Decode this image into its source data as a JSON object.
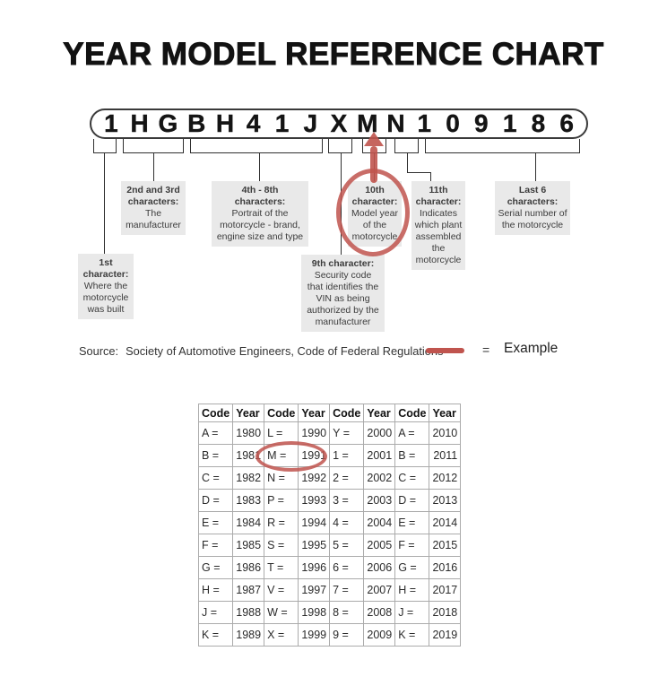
{
  "title": "YEAR MODEL REFERENCE CHART",
  "vin": {
    "characters": [
      "1",
      "H",
      "G",
      "B",
      "H",
      "4",
      "1",
      "J",
      "X",
      "M",
      "N",
      "1",
      "0",
      "9",
      "1",
      "8",
      "6"
    ]
  },
  "annotations": [
    {
      "heading_lines": [
        "1st",
        "character:"
      ],
      "body_lines": [
        "Where the",
        "motorcycle",
        "was built"
      ]
    },
    {
      "heading_lines": [
        "2nd and 3rd",
        "characters:"
      ],
      "body_lines": [
        "The",
        "manufacturer"
      ]
    },
    {
      "heading_lines": [
        "4th - 8th",
        "characters:"
      ],
      "body_lines": [
        "Portrait of the",
        "motorcycle - brand,",
        "engine size and type"
      ]
    },
    {
      "heading_lines": [
        "9th character:"
      ],
      "body_lines": [
        "Security code",
        "that identifies the",
        "VIN as being",
        "authorized by the",
        "manufacturer"
      ]
    },
    {
      "heading_lines": [
        "10th",
        "character:"
      ],
      "body_lines": [
        "Model year",
        "of the",
        "motorcycle"
      ]
    },
    {
      "heading_lines": [
        "11th",
        "character:"
      ],
      "body_lines": [
        "Indicates",
        "which plant",
        "assembled",
        "the",
        "motorcycle"
      ]
    },
    {
      "heading_lines": [
        "Last 6",
        "characters:"
      ],
      "body_lines": [
        "Serial number of",
        "the motorcycle"
      ]
    }
  ],
  "source": {
    "label": "Source:",
    "text": "Society of Automotive Engineers, Code of Federal Regulations"
  },
  "legend": {
    "equals_sign": "=",
    "label": "Example"
  },
  "colors": {
    "accent_red": "#c0544e",
    "annotation_box_bg": "#e9e9e9",
    "line": "#2f2f2f"
  },
  "chart_data": {
    "type": "table",
    "columns": [
      "Code",
      "Year",
      "Code",
      "Year",
      "Code",
      "Year",
      "Code",
      "Year"
    ],
    "rows": [
      [
        "A =",
        "1980",
        "L =",
        "1990",
        "Y =",
        "2000",
        "A =",
        "2010"
      ],
      [
        "B =",
        "1981",
        "M =",
        "1991",
        "1 =",
        "2001",
        "B =",
        "2011"
      ],
      [
        "C =",
        "1982",
        "N =",
        "1992",
        "2 =",
        "2002",
        "C =",
        "2012"
      ],
      [
        "D =",
        "1983",
        "P =",
        "1993",
        "3 =",
        "2003",
        "D =",
        "2013"
      ],
      [
        "E =",
        "1984",
        "R =",
        "1994",
        "4 =",
        "2004",
        "E =",
        "2014"
      ],
      [
        "F =",
        "1985",
        "S =",
        "1995",
        "5 =",
        "2005",
        "F =",
        "2015"
      ],
      [
        "G =",
        "1986",
        "T =",
        "1996",
        "6 =",
        "2006",
        "G =",
        "2016"
      ],
      [
        "H =",
        "1987",
        "V =",
        "1997",
        "7 =",
        "2007",
        "H =",
        "2017"
      ],
      [
        "J =",
        "1988",
        "W =",
        "1998",
        "8 =",
        "2008",
        "J =",
        "2018"
      ],
      [
        "K =",
        "1989",
        "X =",
        "1999",
        "9 =",
        "2009",
        "K =",
        "2019"
      ]
    ],
    "highlighted_cells": [
      "M =",
      "1991"
    ],
    "highlight_row_index": 1,
    "highlight_col_indexes": [
      2,
      3
    ]
  }
}
